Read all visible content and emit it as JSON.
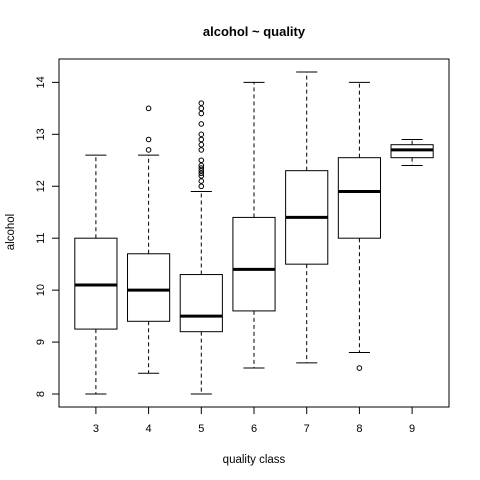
{
  "chart_data": {
    "type": "box",
    "title": "alcohol ~ quality",
    "xlabel": "quality class",
    "ylabel": "alcohol",
    "ylim": [
      7.75,
      14.45
    ],
    "yticks": [
      8,
      9,
      10,
      11,
      12,
      13,
      14
    ],
    "grid": false,
    "legend": "none",
    "categories": [
      "3",
      "4",
      "5",
      "6",
      "7",
      "8",
      "9"
    ],
    "boxes": [
      {
        "category": "3",
        "whisker_low": 8.0,
        "q1": 9.25,
        "median": 10.1,
        "q3": 11.0,
        "whisker_high": 12.6,
        "outliers": []
      },
      {
        "category": "4",
        "whisker_low": 8.4,
        "q1": 9.4,
        "median": 10.0,
        "q3": 10.7,
        "whisker_high": 12.6,
        "outliers": [
          12.7,
          12.9,
          13.5
        ]
      },
      {
        "category": "5",
        "whisker_low": 8.0,
        "q1": 9.2,
        "median": 9.5,
        "q3": 10.3,
        "whisker_high": 11.9,
        "outliers": [
          12.0,
          12.1,
          12.2,
          12.25,
          12.3,
          12.35,
          12.4,
          12.5,
          12.7,
          12.8,
          12.9,
          13.0,
          13.2,
          13.4,
          13.5,
          13.6
        ]
      },
      {
        "category": "6",
        "whisker_low": 8.5,
        "q1": 9.6,
        "median": 10.4,
        "q3": 11.4,
        "whisker_high": 14.0,
        "outliers": []
      },
      {
        "category": "7",
        "whisker_low": 8.6,
        "q1": 10.5,
        "median": 11.4,
        "q3": 12.3,
        "whisker_high": 14.2,
        "outliers": []
      },
      {
        "category": "8",
        "whisker_low": 8.8,
        "q1": 11.0,
        "median": 11.9,
        "q3": 12.55,
        "whisker_high": 14.0,
        "outliers": [
          8.5
        ]
      },
      {
        "category": "9",
        "whisker_low": 12.4,
        "q1": 12.55,
        "median": 12.7,
        "q3": 12.8,
        "whisker_high": 12.9,
        "outliers": []
      }
    ]
  }
}
